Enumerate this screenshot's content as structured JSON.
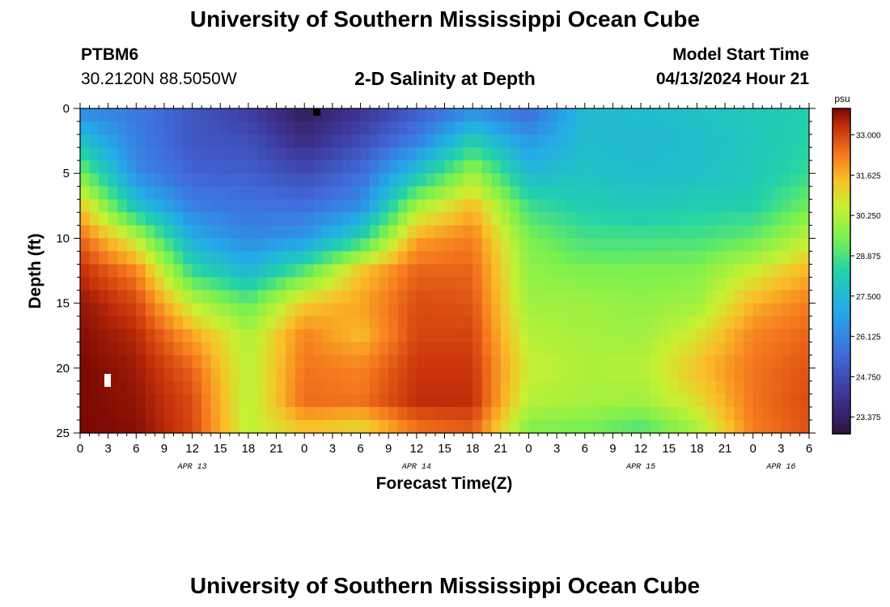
{
  "page": {
    "title_top": "University of Southern Mississippi Ocean Cube",
    "title_bottom": "University of Southern Mississippi Ocean Cube",
    "station_id": "PTBM6",
    "coordinates": "30.2120N  88.5050W",
    "subtitle": "2-D Salinity at Depth",
    "model_start_label": "Model Start Time",
    "model_start_value": "04/13/2024 Hour 21"
  },
  "chart_data": {
    "type": "heatmap",
    "title": "2-D Salinity at Depth",
    "xlabel": "Forecast Time(Z)",
    "ylabel": "Depth (ft)",
    "x_range_hours": [
      0,
      78
    ],
    "y_range_ft": [
      0,
      25
    ],
    "x_ticks": [
      {
        "h": 0,
        "label": "0"
      },
      {
        "h": 3,
        "label": "3"
      },
      {
        "h": 6,
        "label": "6"
      },
      {
        "h": 9,
        "label": "9"
      },
      {
        "h": 12,
        "label": "12"
      },
      {
        "h": 15,
        "label": "15"
      },
      {
        "h": 18,
        "label": "18"
      },
      {
        "h": 21,
        "label": "21"
      },
      {
        "h": 24,
        "label": "0"
      },
      {
        "h": 27,
        "label": "3"
      },
      {
        "h": 30,
        "label": "6"
      },
      {
        "h": 33,
        "label": "9"
      },
      {
        "h": 36,
        "label": "12"
      },
      {
        "h": 39,
        "label": "15"
      },
      {
        "h": 42,
        "label": "18"
      },
      {
        "h": 45,
        "label": "21"
      },
      {
        "h": 48,
        "label": "0"
      },
      {
        "h": 51,
        "label": "3"
      },
      {
        "h": 54,
        "label": "6"
      },
      {
        "h": 57,
        "label": "9"
      },
      {
        "h": 60,
        "label": "12"
      },
      {
        "h": 63,
        "label": "15"
      },
      {
        "h": 66,
        "label": "18"
      },
      {
        "h": 69,
        "label": "21"
      },
      {
        "h": 72,
        "label": "0"
      },
      {
        "h": 75,
        "label": "3"
      },
      {
        "h": 78,
        "label": "6"
      }
    ],
    "date_labels": [
      {
        "h": 12,
        "label": "APR 13"
      },
      {
        "h": 36,
        "label": "APR 14"
      },
      {
        "h": 60,
        "label": "APR 15"
      },
      {
        "h": 75,
        "label": "APR 16"
      }
    ],
    "y_ticks": [
      {
        "v": 0,
        "label": "0"
      },
      {
        "v": 5,
        "label": "5"
      },
      {
        "v": 10,
        "label": "10"
      },
      {
        "v": 15,
        "label": "15"
      },
      {
        "v": 20,
        "label": "20"
      },
      {
        "v": 25,
        "label": "25"
      }
    ],
    "colorbar": {
      "unit": "psu",
      "min": 22.8,
      "max": 33.9,
      "tick_values": [
        23.375,
        24.75,
        26.125,
        27.5,
        28.875,
        30.25,
        31.625,
        33.0
      ],
      "tick_labels": [
        "23.375",
        "24.750",
        "26.125",
        "27.500",
        "28.875",
        "30.250",
        "31.625",
        "33.000"
      ]
    },
    "salinity_profiles": {
      "depths_ft": [
        0,
        2.5,
        5,
        7.5,
        10,
        12.5,
        15,
        17.5,
        20,
        22.5,
        25
      ],
      "times_h": [
        0,
        6,
        12,
        18,
        24,
        30,
        36,
        42,
        48,
        54,
        60,
        66,
        72,
        78
      ],
      "values_psu": [
        [
          26.2,
          27.8,
          29.5,
          31.3,
          32.6,
          33.3,
          33.7,
          33.8,
          33.9,
          33.9,
          33.9
        ],
        [
          25.8,
          26.0,
          26.3,
          27.8,
          30.4,
          32.2,
          33.0,
          33.4,
          33.6,
          33.7,
          33.8
        ],
        [
          25.0,
          25.0,
          25.3,
          26.0,
          27.1,
          28.6,
          30.4,
          31.8,
          32.6,
          32.9,
          33.0
        ],
        [
          24.3,
          24.8,
          25.2,
          25.7,
          26.2,
          27.4,
          29.2,
          30.2,
          30.3,
          30.3,
          30.4
        ],
        [
          23.2,
          23.8,
          24.7,
          25.6,
          26.6,
          29.0,
          31.3,
          32.2,
          32.4,
          32.5,
          31.2
        ],
        [
          24.0,
          24.7,
          25.5,
          26.3,
          28.3,
          31.3,
          31.8,
          31.5,
          32.2,
          32.4,
          30.8
        ],
        [
          25.0,
          26.0,
          27.8,
          30.0,
          31.8,
          32.6,
          32.9,
          33.0,
          33.2,
          33.3,
          32.3
        ],
        [
          26.2,
          28.2,
          30.0,
          31.5,
          32.3,
          32.6,
          32.8,
          33.0,
          33.2,
          33.3,
          32.6
        ],
        [
          25.4,
          26.6,
          27.5,
          28.7,
          29.5,
          29.8,
          30.0,
          30.3,
          30.6,
          30.3,
          29.5
        ],
        [
          27.6,
          27.6,
          27.8,
          28.2,
          28.8,
          29.5,
          30.0,
          30.1,
          30.2,
          30.1,
          29.4
        ],
        [
          27.6,
          27.5,
          27.6,
          28.0,
          28.8,
          29.5,
          29.8,
          30.0,
          30.3,
          30.0,
          28.8
        ],
        [
          27.8,
          27.6,
          27.7,
          28.2,
          28.8,
          29.6,
          30.0,
          30.8,
          31.4,
          30.9,
          30.0
        ],
        [
          28.0,
          28.0,
          28.0,
          28.3,
          29.2,
          30.6,
          31.6,
          32.2,
          32.4,
          32.4,
          32.3
        ],
        [
          28.2,
          28.4,
          28.6,
          29.4,
          30.4,
          31.6,
          32.3,
          32.6,
          32.8,
          32.9,
          32.8
        ]
      ]
    }
  }
}
